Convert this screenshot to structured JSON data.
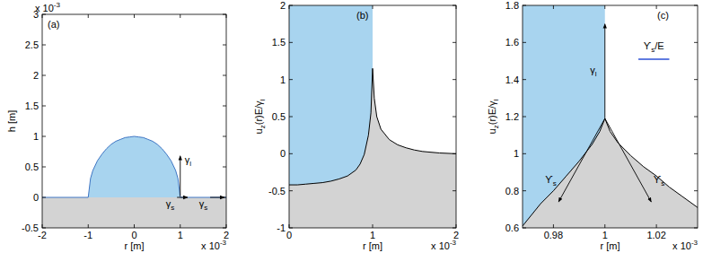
{
  "chart_data": [
    {
      "type": "area",
      "title": "(a)",
      "x_label": "r [m]",
      "y_label": "h [m]",
      "x_scale_label": [
        {
          "t": "x 10"
        },
        {
          "sup": "-3"
        }
      ],
      "y_scale_label": [
        {
          "t": "x 10"
        },
        {
          "sup": "-3"
        }
      ],
      "xlim": [
        -2,
        2
      ],
      "ylim": [
        -0.5,
        3
      ],
      "xticks": [
        -2,
        -1,
        0,
        1,
        2
      ],
      "yticks": [
        -0.5,
        0,
        0.5,
        1,
        1.5,
        2,
        2.5,
        3
      ],
      "series": [
        {
          "type": "area",
          "color": "#a8d4ef",
          "x": [
            -1,
            -0.95,
            -0.9,
            -0.8,
            -0.7,
            -0.6,
            -0.5,
            -0.4,
            -0.3,
            -0.2,
            -0.1,
            0,
            0.1,
            0.2,
            0.3,
            0.4,
            0.5,
            0.6,
            0.7,
            0.8,
            0.9,
            0.95,
            1
          ],
          "values": [
            0,
            0.31,
            0.44,
            0.6,
            0.71,
            0.8,
            0.87,
            0.92,
            0.95,
            0.98,
            0.99,
            1,
            0.99,
            0.98,
            0.95,
            0.92,
            0.87,
            0.8,
            0.71,
            0.6,
            0.44,
            0.31,
            0
          ]
        },
        {
          "type": "area",
          "color": "#d3d3d3",
          "x": [
            -2,
            2
          ],
          "values": [
            0,
            0
          ]
        },
        {
          "type": "line",
          "color": "#3f76c4",
          "x": [
            -2,
            -1,
            -0.95,
            -0.9,
            -0.8,
            -0.7,
            -0.6,
            -0.5,
            -0.4,
            -0.3,
            -0.2,
            -0.1,
            0,
            0.1,
            0.2,
            0.3,
            0.4,
            0.5,
            0.6,
            0.7,
            0.8,
            0.9,
            0.95,
            1,
            2
          ],
          "values": [
            0,
            0,
            0.31,
            0.44,
            0.6,
            0.71,
            0.8,
            0.87,
            0.92,
            0.95,
            0.98,
            0.99,
            1,
            0.99,
            0.98,
            0.95,
            0.92,
            0.87,
            0.8,
            0.71,
            0.6,
            0.44,
            0.31,
            0,
            0
          ]
        }
      ],
      "annotations": [
        {
          "text": [
            {
              "t": "γ"
            },
            {
              "sub": "l"
            }
          ],
          "x": 1.17,
          "y": 0.62,
          "arrow": [
            1,
            0.02,
            1,
            0.68
          ]
        },
        {
          "text": [
            {
              "t": "γ"
            },
            {
              "sub": "s"
            }
          ],
          "x": 0.78,
          "y": -0.1,
          "arrow": [
            0.93,
            0,
            1.16,
            0
          ]
        },
        {
          "text": [
            {
              "t": "γ"
            },
            {
              "sub": "s"
            }
          ],
          "x": 1.5,
          "y": -0.1,
          "arrow": [
            1.65,
            0,
            1.96,
            0
          ]
        }
      ]
    },
    {
      "type": "area",
      "title": "(b)",
      "x_label": "r [m]",
      "y_label": [
        {
          "t": "u"
        },
        {
          "sub": "z"
        },
        {
          "t": "(r)E/γ"
        },
        {
          "sub": "l"
        }
      ],
      "x_scale_label": [
        {
          "t": "x 10"
        },
        {
          "sup": "-3"
        }
      ],
      "xlim": [
        0,
        2
      ],
      "ylim": [
        -1,
        2
      ],
      "xticks": [
        0,
        1,
        2
      ],
      "yticks": [
        -1,
        -0.5,
        0,
        0.5,
        1,
        1.5,
        2
      ],
      "series": [
        {
          "type": "area",
          "color": "#a8d4ef",
          "x": [
            0,
            1
          ],
          "values": [
            2,
            2
          ]
        },
        {
          "type": "area",
          "color": "#d3d3d3",
          "x": [
            0,
            0.1,
            0.2,
            0.3,
            0.4,
            0.5,
            0.6,
            0.7,
            0.8,
            0.85,
            0.9,
            0.95,
            0.98,
            1,
            1.02,
            1.05,
            1.1,
            1.2,
            1.3,
            1.4,
            1.5,
            1.6,
            1.8,
            2
          ],
          "values": [
            -0.42,
            -0.42,
            -0.41,
            -0.4,
            -0.39,
            -0.37,
            -0.34,
            -0.3,
            -0.22,
            -0.14,
            -0.01,
            0.25,
            0.55,
            1.15,
            0.75,
            0.5,
            0.33,
            0.19,
            0.12,
            0.08,
            0.05,
            0.03,
            0.01,
            0
          ]
        },
        {
          "type": "line",
          "color": "#000000",
          "x": [
            0,
            0.1,
            0.2,
            0.3,
            0.4,
            0.5,
            0.6,
            0.7,
            0.8,
            0.85,
            0.9,
            0.95,
            0.98,
            1,
            1.02,
            1.05,
            1.1,
            1.2,
            1.3,
            1.4,
            1.5,
            1.6,
            1.8,
            2
          ],
          "values": [
            -0.42,
            -0.42,
            -0.41,
            -0.4,
            -0.39,
            -0.37,
            -0.34,
            -0.3,
            -0.22,
            -0.14,
            -0.01,
            0.25,
            0.55,
            1.15,
            0.75,
            0.5,
            0.33,
            0.19,
            0.12,
            0.08,
            0.05,
            0.03,
            0.01,
            0
          ]
        }
      ],
      "annotations": []
    },
    {
      "type": "area",
      "title": "(c)",
      "x_label": "r [m]",
      "y_label": [
        {
          "t": "u"
        },
        {
          "sub": "z"
        },
        {
          "t": "(r)E/γ"
        },
        {
          "sub": "l"
        }
      ],
      "x_scale_label": [
        {
          "t": "x 10"
        },
        {
          "sup": "-3"
        }
      ],
      "xlim": [
        0.968,
        1.036
      ],
      "ylim": [
        0.6,
        1.8
      ],
      "xticks": [
        0.98,
        1,
        1.02
      ],
      "yticks": [
        0.6,
        0.8,
        1,
        1.2,
        1.4,
        1.6,
        1.8
      ],
      "series": [
        {
          "type": "area",
          "color": "#a8d4ef",
          "x": [
            0.968,
            1
          ],
          "values": [
            1.8,
            1.8
          ]
        },
        {
          "type": "area",
          "color": "#d3d3d3",
          "x": [
            0.968,
            0.975,
            0.98,
            0.985,
            0.99,
            0.995,
            0.998,
            1,
            1.002,
            1.005,
            1.01,
            1.015,
            1.02,
            1.025,
            1.03,
            1.036
          ],
          "values": [
            0.61,
            0.73,
            0.8,
            0.88,
            0.96,
            1.05,
            1.12,
            1.19,
            1.12,
            1.06,
            0.99,
            0.93,
            0.88,
            0.82,
            0.77,
            0.71
          ]
        },
        {
          "type": "line",
          "color": "#000000",
          "x": [
            0.968,
            0.975,
            0.98,
            0.985,
            0.99,
            0.995,
            0.998,
            1,
            1.002,
            1.005,
            1.01,
            1.015,
            1.02,
            1.025,
            1.03,
            1.036
          ],
          "values": [
            0.61,
            0.73,
            0.8,
            0.88,
            0.96,
            1.05,
            1.12,
            1.19,
            1.12,
            1.06,
            0.99,
            0.93,
            0.88,
            0.82,
            0.77,
            0.71
          ]
        }
      ],
      "annotations": [
        {
          "text": [
            {
              "t": "γ"
            },
            {
              "sub": "l"
            }
          ],
          "x": 0.9955,
          "y": 1.45,
          "arrow": [
            1,
            1.19,
            1,
            1.7
          ]
        },
        {
          "text": [
            {
              "t": "ϒ"
            },
            {
              "sub": "s"
            }
          ],
          "x": 0.979,
          "y": 0.86,
          "arrow": [
            1,
            1.19,
            0.982,
            0.74
          ]
        },
        {
          "text": [
            {
              "t": "ϒ"
            },
            {
              "sub": "s"
            }
          ],
          "x": 1.021,
          "y": 0.86,
          "arrow": [
            1,
            1.19,
            1.018,
            0.74
          ]
        },
        {
          "text": [
            {
              "t": "ϒ"
            },
            {
              "sub": "s"
            },
            {
              "t": "/E"
            }
          ],
          "x": 1.019,
          "y": 1.58,
          "line": [
            1.013,
            1.51,
            1.025,
            1.51
          ],
          "color": "#2b4fd6"
        }
      ]
    }
  ]
}
